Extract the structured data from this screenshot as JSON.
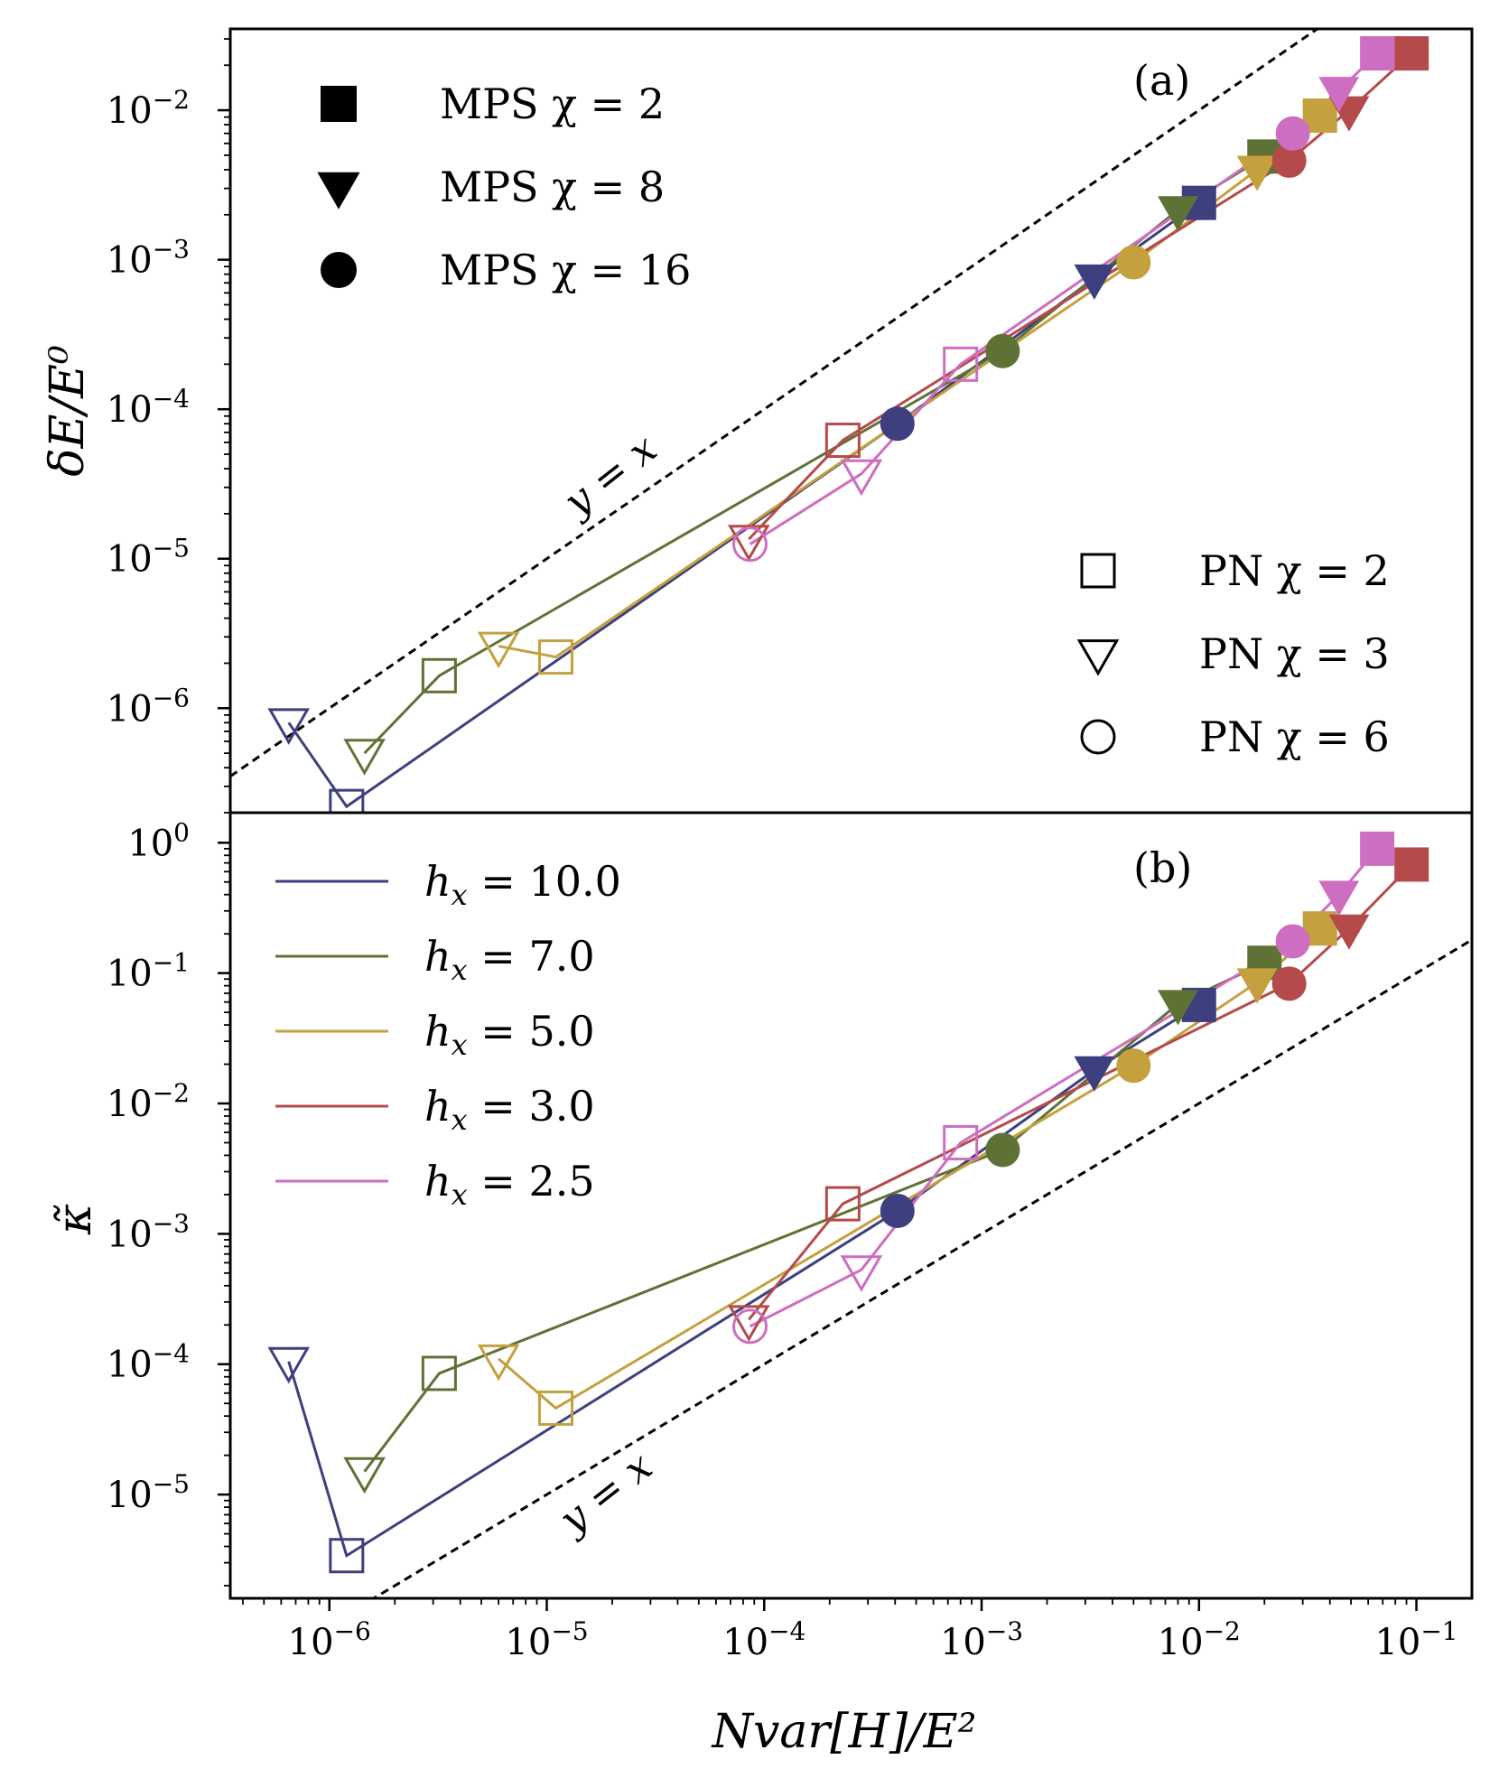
{
  "chart_data": [
    {
      "type": "scatter",
      "panel_label": "(a)",
      "xscale": "log",
      "yscale": "log",
      "xlim": [
        3.5e-07,
        0.18
      ],
      "ylim": [
        2e-07,
        0.035
      ],
      "ylabel": "δE/E⁰",
      "y_ticks": [
        {
          "label": "10",
          "exp": "−6",
          "value": 1e-06
        },
        {
          "label": "10",
          "exp": "−5",
          "value": 1e-05
        },
        {
          "label": "10",
          "exp": "−4",
          "value": 0.0001
        },
        {
          "label": "10",
          "exp": "−3",
          "value": 0.001
        },
        {
          "label": "10",
          "exp": "−2",
          "value": 0.01
        }
      ],
      "reference_line": {
        "label": "y = x"
      },
      "legend_mps": [
        {
          "marker": "square",
          "text": "MPS χ = 2"
        },
        {
          "marker": "triangle",
          "text": "MPS χ = 8"
        },
        {
          "marker": "circle",
          "text": "MPS χ = 16"
        }
      ],
      "legend_pn": [
        {
          "marker": "square",
          "text": "PN χ = 2"
        },
        {
          "marker": "triangle",
          "text": "PN χ = 3"
        },
        {
          "marker": "circle",
          "text": "PN χ = 6"
        }
      ],
      "series": [
        {
          "name": "hx = 10.0",
          "color": "#3d3f7f",
          "points": [
            {
              "x": 6.5e-07,
              "y": 8e-07,
              "marker": "triangle",
              "filled": false
            },
            {
              "x": 1.2e-06,
              "y": 2.2e-07,
              "marker": "square",
              "filled": false
            },
            {
              "x": 0.00041,
              "y": 8e-05,
              "marker": "circle",
              "filled": true
            },
            {
              "x": 0.0033,
              "y": 0.00075,
              "marker": "triangle",
              "filled": true
            },
            {
              "x": 0.01,
              "y": 0.0024,
              "marker": "square",
              "filled": true
            }
          ]
        },
        {
          "name": "hx = 7.0",
          "color": "#5f7236",
          "points": [
            {
              "x": 1.45e-06,
              "y": 5e-07,
              "marker": "triangle",
              "filled": false
            },
            {
              "x": 3.2e-06,
              "y": 1.65e-06,
              "marker": "square",
              "filled": false
            },
            {
              "x": 0.00125,
              "y": 0.000245,
              "marker": "circle",
              "filled": true
            },
            {
              "x": 0.008,
              "y": 0.00215,
              "marker": "triangle",
              "filled": true
            },
            {
              "x": 0.02,
              "y": 0.0049,
              "marker": "square",
              "filled": true
            }
          ]
        },
        {
          "name": "hx = 5.0",
          "color": "#c4a03f",
          "points": [
            {
              "x": 6e-06,
              "y": 2.6e-06,
              "marker": "triangle",
              "filled": false
            },
            {
              "x": 1.1e-05,
              "y": 2.2e-06,
              "marker": "square",
              "filled": false
            },
            {
              "x": 0.005,
              "y": 0.00096,
              "marker": "circle",
              "filled": true
            },
            {
              "x": 0.0185,
              "y": 0.004,
              "marker": "triangle",
              "filled": true
            },
            {
              "x": 0.036,
              "y": 0.0092,
              "marker": "square",
              "filled": true
            }
          ]
        },
        {
          "name": "hx = 3.0",
          "color": "#b54a4b",
          "points": [
            {
              "x": 8.5e-05,
              "y": 1.35e-05,
              "marker": "triangle",
              "filled": false
            },
            {
              "x": 0.00023,
              "y": 6.2e-05,
              "marker": "square",
              "filled": false
            },
            {
              "x": 0.026,
              "y": 0.0046,
              "marker": "circle",
              "filled": true
            },
            {
              "x": 0.049,
              "y": 0.01,
              "marker": "triangle",
              "filled": true
            },
            {
              "x": 0.095,
              "y": 0.024,
              "marker": "square",
              "filled": true
            }
          ]
        },
        {
          "name": "hx = 2.5",
          "color": "#cd6ec0",
          "points": [
            {
              "x": 8.6e-05,
              "y": 1.25e-05,
              "marker": "circle",
              "filled": false
            },
            {
              "x": 0.00028,
              "y": 3.7e-05,
              "marker": "triangle",
              "filled": false
            },
            {
              "x": 0.0008,
              "y": 0.0002,
              "marker": "square",
              "filled": false
            },
            {
              "x": 0.027,
              "y": 0.007,
              "marker": "circle",
              "filled": true
            },
            {
              "x": 0.044,
              "y": 0.0135,
              "marker": "triangle",
              "filled": true
            },
            {
              "x": 0.066,
              "y": 0.024,
              "marker": "square",
              "filled": true
            }
          ]
        }
      ]
    },
    {
      "type": "scatter",
      "panel_label": "(b)",
      "xscale": "log",
      "yscale": "log",
      "xlim": [
        3.5e-07,
        0.18
      ],
      "ylim": [
        1.6e-06,
        1.7
      ],
      "ylabel": "κ̃",
      "xlabel": "Nvar[H]/E²",
      "x_ticks": [
        {
          "label": "10",
          "exp": "−6",
          "value": 1e-06
        },
        {
          "label": "10",
          "exp": "−5",
          "value": 1e-05
        },
        {
          "label": "10",
          "exp": "−4",
          "value": 0.0001
        },
        {
          "label": "10",
          "exp": "−3",
          "value": 0.001
        },
        {
          "label": "10",
          "exp": "−2",
          "value": 0.01
        },
        {
          "label": "10",
          "exp": "−1",
          "value": 0.1
        }
      ],
      "y_ticks": [
        {
          "label": "10",
          "exp": "−5",
          "value": 1e-05
        },
        {
          "label": "10",
          "exp": "−4",
          "value": 0.0001
        },
        {
          "label": "10",
          "exp": "−3",
          "value": 0.001
        },
        {
          "label": "10",
          "exp": "−2",
          "value": 0.01
        },
        {
          "label": "10",
          "exp": "−1",
          "value": 0.1
        },
        {
          "label": "10",
          "exp": "0",
          "value": 1
        }
      ],
      "reference_line": {
        "label": "y = x"
      },
      "legend": [
        {
          "symbol": "h",
          "sub": "x",
          "value": " = 10.0"
        },
        {
          "symbol": "h",
          "sub": "x",
          "value": " = 7.0"
        },
        {
          "symbol": "h",
          "sub": "x",
          "value": " = 5.0"
        },
        {
          "symbol": "h",
          "sub": "x",
          "value": " = 3.0"
        },
        {
          "symbol": "h",
          "sub": "x",
          "value": " = 2.5"
        }
      ],
      "series": [
        {
          "name": "hx = 10.0",
          "color": "#3d3f7f",
          "points": [
            {
              "x": 6.5e-07,
              "y": 0.000105,
              "marker": "triangle",
              "filled": false
            },
            {
              "x": 1.2e-06,
              "y": 3.4e-06,
              "marker": "square",
              "filled": false
            },
            {
              "x": 0.00041,
              "y": 0.0015,
              "marker": "circle",
              "filled": true
            },
            {
              "x": 0.0033,
              "y": 0.018,
              "marker": "triangle",
              "filled": true
            },
            {
              "x": 0.01,
              "y": 0.057,
              "marker": "square",
              "filled": true
            }
          ]
        },
        {
          "name": "hx = 7.0",
          "color": "#5f7236",
          "points": [
            {
              "x": 1.45e-06,
              "y": 1.5e-05,
              "marker": "triangle",
              "filled": false
            },
            {
              "x": 3.2e-06,
              "y": 8.5e-05,
              "marker": "square",
              "filled": false
            },
            {
              "x": 0.00125,
              "y": 0.0044,
              "marker": "circle",
              "filled": true
            },
            {
              "x": 0.008,
              "y": 0.058,
              "marker": "triangle",
              "filled": true
            },
            {
              "x": 0.02,
              "y": 0.12,
              "marker": "square",
              "filled": true
            }
          ]
        },
        {
          "name": "hx = 5.0",
          "color": "#c4a03f",
          "points": [
            {
              "x": 6e-06,
              "y": 0.00011,
              "marker": "triangle",
              "filled": false
            },
            {
              "x": 1.1e-05,
              "y": 4.6e-05,
              "marker": "square",
              "filled": false
            },
            {
              "x": 0.005,
              "y": 0.0195,
              "marker": "circle",
              "filled": true
            },
            {
              "x": 0.0185,
              "y": 0.085,
              "marker": "triangle",
              "filled": true
            },
            {
              "x": 0.036,
              "y": 0.22,
              "marker": "square",
              "filled": true
            }
          ]
        },
        {
          "name": "hx = 3.0",
          "color": "#b54a4b",
          "points": [
            {
              "x": 8.5e-05,
              "y": 0.00022,
              "marker": "triangle",
              "filled": false
            },
            {
              "x": 0.00023,
              "y": 0.0017,
              "marker": "square",
              "filled": false
            },
            {
              "x": 0.026,
              "y": 0.083,
              "marker": "circle",
              "filled": true
            },
            {
              "x": 0.049,
              "y": 0.22,
              "marker": "triangle",
              "filled": true
            },
            {
              "x": 0.095,
              "y": 0.68,
              "marker": "square",
              "filled": true
            }
          ]
        },
        {
          "name": "hx = 2.5",
          "color": "#cd6ec0",
          "points": [
            {
              "x": 8.6e-05,
              "y": 0.000195,
              "marker": "circle",
              "filled": false
            },
            {
              "x": 0.00028,
              "y": 0.00053,
              "marker": "triangle",
              "filled": false
            },
            {
              "x": 0.0008,
              "y": 0.005,
              "marker": "square",
              "filled": false
            },
            {
              "x": 0.027,
              "y": 0.175,
              "marker": "circle",
              "filled": true
            },
            {
              "x": 0.044,
              "y": 0.4,
              "marker": "triangle",
              "filled": true
            },
            {
              "x": 0.066,
              "y": 0.9,
              "marker": "square",
              "filled": true
            }
          ]
        }
      ]
    }
  ]
}
